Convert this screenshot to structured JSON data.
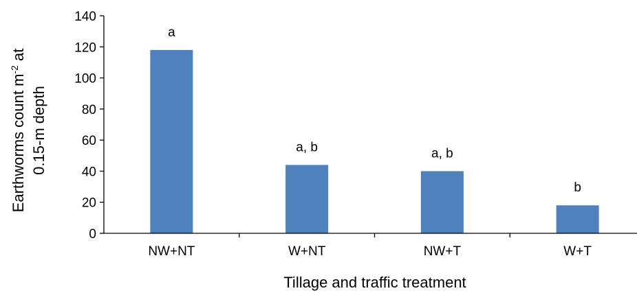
{
  "chart_data": {
    "type": "bar",
    "categories": [
      "NW+NT",
      "W+NT",
      "NW+T",
      "W+T"
    ],
    "values": [
      118,
      44,
      40,
      18
    ],
    "significance_labels": [
      "a",
      "a, b",
      "a, b",
      "b"
    ],
    "xlabel": "Tillage and traffic treatment",
    "ylabel_line1": "Earthworms count m",
    "ylabel_sup": "-2",
    "ylabel_line1_tail": " at",
    "ylabel_line2": "0.15-m depth",
    "ylim": [
      0,
      140
    ],
    "yticks": [
      0,
      20,
      40,
      60,
      80,
      100,
      120,
      140
    ],
    "bar_color": "#4F81BD",
    "grid": false
  }
}
